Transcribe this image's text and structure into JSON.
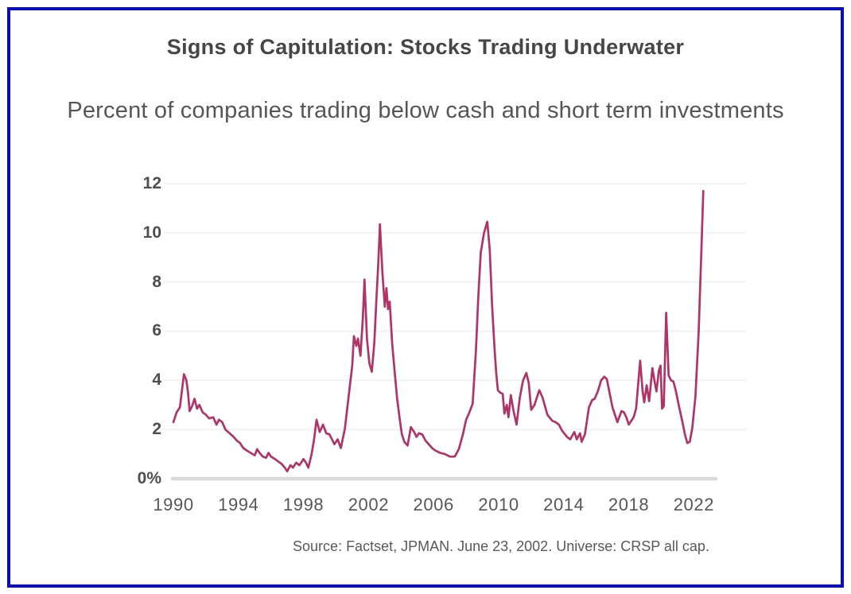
{
  "header": {
    "title": "Signs of Capitulation: Stocks Trading Underwater",
    "subtitle": "Percent of companies trading below cash and short term investments"
  },
  "footer": {
    "source": "Source: Factset, JPMAN. June 23, 2002. Universe: CRSP all cap."
  },
  "colors": {
    "line": "#b03468",
    "frame_border": "#0a0ace",
    "axis_line": "#d9d9d9",
    "gridline": "#f2f2f2",
    "tick_text": "#4e4e4e"
  },
  "chart_data": {
    "type": "line",
    "title": "Signs of Capitulation: Stocks Trading Underwater",
    "subtitle": "Percent of companies trading below cash and short term investments",
    "xlabel": "",
    "ylabel": "",
    "xlim": [
      1990,
      2023
    ],
    "ylim": [
      0,
      12
    ],
    "grid": "faint-horizontal",
    "legend": false,
    "yticks": [
      {
        "label": "12",
        "value": 12
      },
      {
        "label": "10",
        "value": 10
      },
      {
        "label": "8",
        "value": 8
      },
      {
        "label": "6",
        "value": 6
      },
      {
        "label": "4",
        "value": 4
      },
      {
        "label": "2",
        "value": 2
      },
      {
        "label": "0%",
        "value": 0
      }
    ],
    "xticks": [
      {
        "label": "1990",
        "value": 1990
      },
      {
        "label": "1994",
        "value": 1994
      },
      {
        "label": "1998",
        "value": 1998
      },
      {
        "label": "2002",
        "value": 2002
      },
      {
        "label": "2006",
        "value": 2006
      },
      {
        "label": "2010",
        "value": 2010
      },
      {
        "label": "2014",
        "value": 2014
      },
      {
        "label": "2018",
        "value": 2018
      },
      {
        "label": "2022",
        "value": 2022
      }
    ],
    "series": [
      {
        "name": "Percent of companies trading below cash and short term investments",
        "points": [
          [
            1990.0,
            2.3
          ],
          [
            1990.2,
            2.7
          ],
          [
            1990.4,
            2.9
          ],
          [
            1990.55,
            3.7
          ],
          [
            1990.65,
            4.25
          ],
          [
            1990.8,
            4.0
          ],
          [
            1990.9,
            3.5
          ],
          [
            1991.0,
            2.75
          ],
          [
            1991.15,
            2.95
          ],
          [
            1991.3,
            3.25
          ],
          [
            1991.45,
            2.85
          ],
          [
            1991.6,
            3.0
          ],
          [
            1991.8,
            2.7
          ],
          [
            1992.0,
            2.6
          ],
          [
            1992.2,
            2.45
          ],
          [
            1992.45,
            2.5
          ],
          [
            1992.65,
            2.2
          ],
          [
            1992.8,
            2.4
          ],
          [
            1993.0,
            2.3
          ],
          [
            1993.2,
            2.0
          ],
          [
            1993.45,
            1.85
          ],
          [
            1993.7,
            1.7
          ],
          [
            1993.9,
            1.55
          ],
          [
            1994.1,
            1.45
          ],
          [
            1994.3,
            1.25
          ],
          [
            1994.5,
            1.15
          ],
          [
            1994.75,
            1.05
          ],
          [
            1995.0,
            0.95
          ],
          [
            1995.15,
            1.2
          ],
          [
            1995.3,
            1.05
          ],
          [
            1995.5,
            0.9
          ],
          [
            1995.7,
            0.85
          ],
          [
            1995.85,
            1.05
          ],
          [
            1996.0,
            0.9
          ],
          [
            1996.25,
            0.8
          ],
          [
            1996.45,
            0.7
          ],
          [
            1996.65,
            0.6
          ],
          [
            1996.85,
            0.45
          ],
          [
            1997.0,
            0.3
          ],
          [
            1997.2,
            0.55
          ],
          [
            1997.35,
            0.45
          ],
          [
            1997.55,
            0.65
          ],
          [
            1997.75,
            0.55
          ],
          [
            1998.0,
            0.8
          ],
          [
            1998.15,
            0.65
          ],
          [
            1998.3,
            0.45
          ],
          [
            1998.5,
            1.0
          ],
          [
            1998.65,
            1.6
          ],
          [
            1998.8,
            2.4
          ],
          [
            1999.0,
            1.9
          ],
          [
            1999.2,
            2.2
          ],
          [
            1999.4,
            1.85
          ],
          [
            1999.6,
            1.8
          ],
          [
            1999.9,
            1.4
          ],
          [
            2000.1,
            1.6
          ],
          [
            2000.3,
            1.25
          ],
          [
            2000.55,
            2.05
          ],
          [
            2000.8,
            3.5
          ],
          [
            2001.0,
            4.6
          ],
          [
            2001.1,
            5.8
          ],
          [
            2001.25,
            5.4
          ],
          [
            2001.35,
            5.7
          ],
          [
            2001.5,
            5.0
          ],
          [
            2001.65,
            6.5
          ],
          [
            2001.75,
            8.1
          ],
          [
            2001.9,
            5.7
          ],
          [
            2002.05,
            4.7
          ],
          [
            2002.2,
            4.35
          ],
          [
            2002.35,
            5.5
          ],
          [
            2002.5,
            7.5
          ],
          [
            2002.6,
            8.8
          ],
          [
            2002.7,
            10.35
          ],
          [
            2002.85,
            8.4
          ],
          [
            2003.0,
            7.0
          ],
          [
            2003.1,
            7.75
          ],
          [
            2003.2,
            6.9
          ],
          [
            2003.3,
            7.2
          ],
          [
            2003.45,
            5.5
          ],
          [
            2003.6,
            4.4
          ],
          [
            2003.75,
            3.3
          ],
          [
            2003.9,
            2.5
          ],
          [
            2004.05,
            1.8
          ],
          [
            2004.2,
            1.5
          ],
          [
            2004.4,
            1.35
          ],
          [
            2004.6,
            2.1
          ],
          [
            2004.8,
            1.9
          ],
          [
            2004.95,
            1.7
          ],
          [
            2005.1,
            1.85
          ],
          [
            2005.3,
            1.8
          ],
          [
            2005.5,
            1.55
          ],
          [
            2005.7,
            1.4
          ],
          [
            2005.9,
            1.25
          ],
          [
            2006.1,
            1.15
          ],
          [
            2006.4,
            1.05
          ],
          [
            2006.7,
            1.0
          ],
          [
            2007.0,
            0.9
          ],
          [
            2007.3,
            0.9
          ],
          [
            2007.55,
            1.2
          ],
          [
            2007.8,
            1.8
          ],
          [
            2008.0,
            2.4
          ],
          [
            2008.2,
            2.7
          ],
          [
            2008.4,
            3.05
          ],
          [
            2008.6,
            5.2
          ],
          [
            2008.75,
            7.4
          ],
          [
            2008.9,
            9.2
          ],
          [
            2009.1,
            10.0
          ],
          [
            2009.3,
            10.45
          ],
          [
            2009.45,
            9.3
          ],
          [
            2009.6,
            7.0
          ],
          [
            2009.75,
            5.25
          ],
          [
            2009.85,
            4.3
          ],
          [
            2009.95,
            3.6
          ],
          [
            2010.1,
            3.5
          ],
          [
            2010.25,
            3.45
          ],
          [
            2010.35,
            2.65
          ],
          [
            2010.5,
            3.0
          ],
          [
            2010.6,
            2.5
          ],
          [
            2010.75,
            3.4
          ],
          [
            2010.9,
            2.8
          ],
          [
            2011.1,
            2.2
          ],
          [
            2011.3,
            3.3
          ],
          [
            2011.5,
            4.0
          ],
          [
            2011.7,
            4.3
          ],
          [
            2011.85,
            3.9
          ],
          [
            2012.0,
            2.8
          ],
          [
            2012.2,
            3.0
          ],
          [
            2012.5,
            3.6
          ],
          [
            2012.7,
            3.3
          ],
          [
            2013.0,
            2.6
          ],
          [
            2013.3,
            2.35
          ],
          [
            2013.5,
            2.3
          ],
          [
            2013.7,
            2.2
          ],
          [
            2013.9,
            1.95
          ],
          [
            2014.2,
            1.7
          ],
          [
            2014.4,
            1.6
          ],
          [
            2014.65,
            1.9
          ],
          [
            2014.8,
            1.6
          ],
          [
            2015.0,
            1.85
          ],
          [
            2015.1,
            1.5
          ],
          [
            2015.3,
            1.8
          ],
          [
            2015.55,
            2.9
          ],
          [
            2015.75,
            3.2
          ],
          [
            2015.9,
            3.25
          ],
          [
            2016.1,
            3.55
          ],
          [
            2016.3,
            4.0
          ],
          [
            2016.5,
            4.15
          ],
          [
            2016.65,
            4.05
          ],
          [
            2016.8,
            3.55
          ],
          [
            2017.0,
            2.9
          ],
          [
            2017.15,
            2.6
          ],
          [
            2017.3,
            2.3
          ],
          [
            2017.55,
            2.75
          ],
          [
            2017.7,
            2.7
          ],
          [
            2017.85,
            2.5
          ],
          [
            2018.0,
            2.2
          ],
          [
            2018.15,
            2.35
          ],
          [
            2018.3,
            2.5
          ],
          [
            2018.45,
            2.85
          ],
          [
            2018.7,
            4.8
          ],
          [
            2018.85,
            3.55
          ],
          [
            2018.95,
            3.1
          ],
          [
            2019.1,
            3.8
          ],
          [
            2019.25,
            3.15
          ],
          [
            2019.45,
            4.5
          ],
          [
            2019.6,
            3.9
          ],
          [
            2019.7,
            3.55
          ],
          [
            2019.85,
            4.4
          ],
          [
            2019.95,
            4.6
          ],
          [
            2020.05,
            2.85
          ],
          [
            2020.15,
            2.95
          ],
          [
            2020.3,
            6.75
          ],
          [
            2020.45,
            4.2
          ],
          [
            2020.6,
            4.0
          ],
          [
            2020.75,
            3.95
          ],
          [
            2020.9,
            3.55
          ],
          [
            2021.1,
            2.9
          ],
          [
            2021.3,
            2.3
          ],
          [
            2021.45,
            1.8
          ],
          [
            2021.6,
            1.45
          ],
          [
            2021.75,
            1.5
          ],
          [
            2021.9,
            2.05
          ],
          [
            2022.1,
            3.35
          ],
          [
            2022.3,
            6.0
          ],
          [
            2022.45,
            9.0
          ],
          [
            2022.58,
            11.7
          ]
        ]
      }
    ]
  }
}
